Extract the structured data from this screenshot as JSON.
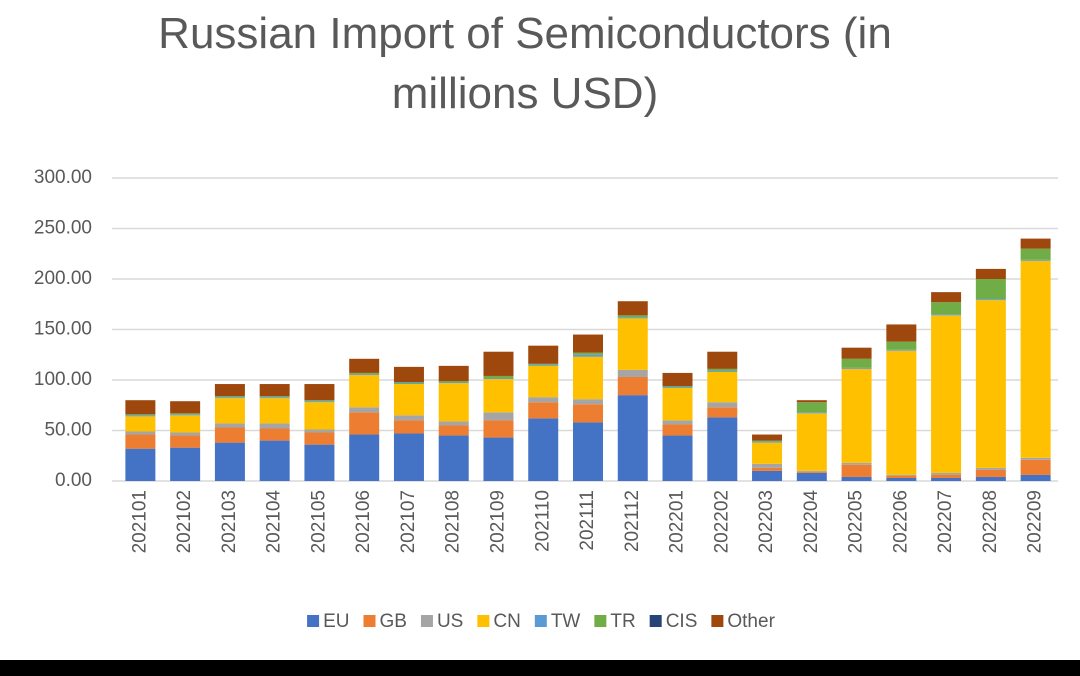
{
  "chart_data": {
    "type": "stacked_bar",
    "title": "Russian Import of Semiconductors (in millions USD)",
    "categories": [
      "202101",
      "202102",
      "202103",
      "202104",
      "202105",
      "202106",
      "202107",
      "202108",
      "202109",
      "202110",
      "202111",
      "202112",
      "202201",
      "202202",
      "202203",
      "202204",
      "202205",
      "202206",
      "202207",
      "202208",
      "202209"
    ],
    "series": [
      {
        "name": "EU",
        "color": "#4472c4",
        "values": [
          32,
          33,
          38,
          40,
          36,
          46,
          47,
          45,
          43,
          62,
          58,
          85,
          45,
          63,
          10,
          8,
          4,
          3,
          3,
          4,
          6
        ]
      },
      {
        "name": "GB",
        "color": "#ed7d31",
        "values": [
          14,
          12,
          15,
          12,
          12,
          22,
          13,
          10,
          17,
          16,
          18,
          18,
          11,
          10,
          3,
          1,
          12,
          2,
          3,
          7,
          15
        ]
      },
      {
        "name": "US",
        "color": "#a5a5a5",
        "values": [
          3,
          3,
          4,
          5,
          3,
          5,
          5,
          4,
          8,
          5,
          5,
          7,
          4,
          5,
          4,
          1,
          2,
          1,
          2,
          2,
          2
        ]
      },
      {
        "name": "CN",
        "color": "#ffc000",
        "values": [
          15,
          17,
          25,
          25,
          27,
          32,
          31,
          38,
          33,
          31,
          42,
          51,
          32,
          30,
          21,
          57,
          93,
          123,
          156,
          166,
          195
        ]
      },
      {
        "name": "TW",
        "color": "#5b9bd5",
        "values": [
          1,
          1,
          1,
          1,
          1,
          1,
          1,
          1,
          1,
          1,
          2,
          1,
          1,
          1,
          1,
          1,
          1,
          1,
          1,
          1,
          1
        ]
      },
      {
        "name": "TR",
        "color": "#70ad47",
        "values": [
          1,
          1,
          1,
          1,
          1,
          1,
          1,
          1,
          2,
          1,
          2,
          2,
          1,
          2,
          1,
          10,
          9,
          8,
          12,
          20,
          11
        ]
      },
      {
        "name": "CIS",
        "color": "#264478",
        "values": [
          0,
          0,
          0,
          0,
          0,
          0,
          0,
          0,
          0,
          0,
          0,
          0,
          0,
          0,
          0,
          0,
          0,
          0,
          0,
          0,
          0
        ]
      },
      {
        "name": "Other",
        "color": "#9e480e",
        "values": [
          14,
          12,
          12,
          12,
          16,
          14,
          15,
          15,
          24,
          18,
          18,
          14,
          13,
          17,
          6,
          2,
          11,
          17,
          10,
          10,
          10
        ]
      }
    ],
    "ylim": [
      0,
      300
    ],
    "yticks": [
      {
        "value": 0,
        "label": "0.00"
      },
      {
        "value": 50,
        "label": "50.00"
      },
      {
        "value": 100,
        "label": "100.00"
      },
      {
        "value": 150,
        "label": "150.00"
      },
      {
        "value": 200,
        "label": "200.00"
      },
      {
        "value": 250,
        "label": "250.00"
      },
      {
        "value": 300,
        "label": "300.00"
      }
    ],
    "grid": true,
    "legend": "bottom"
  }
}
